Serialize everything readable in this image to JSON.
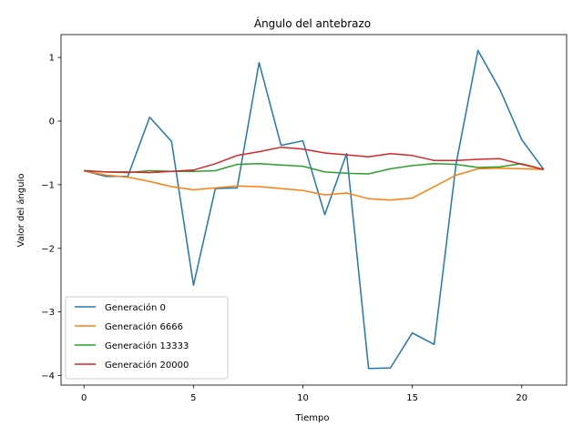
{
  "chart_data": {
    "type": "line",
    "title": "Ángulo del antebrazo",
    "xlabel": "Tiempo",
    "ylabel": "Valor del ángulo",
    "xlim": [
      -1.05,
      22.05
    ],
    "ylim": [
      -4.15,
      1.36
    ],
    "xticks": [
      0,
      5,
      10,
      15,
      20
    ],
    "yticks": [
      -4,
      -3,
      -2,
      -1,
      0,
      1
    ],
    "grid": false,
    "legend_position": "lower left",
    "x": [
      0,
      1,
      2,
      3,
      4,
      5,
      6,
      7,
      8,
      9,
      10,
      11,
      12,
      13,
      14,
      15,
      16,
      17,
      18,
      19,
      20,
      21
    ],
    "series": [
      {
        "name": "Generación 0",
        "color": "#1f77b4",
        "values": [
          -0.78,
          -0.87,
          -0.87,
          0.06,
          -0.32,
          -2.58,
          -1.06,
          -1.05,
          0.92,
          -0.38,
          -0.31,
          -1.47,
          -0.51,
          -3.89,
          -3.88,
          -3.33,
          -3.51,
          -0.67,
          1.11,
          0.5,
          -0.29,
          -0.76
        ]
      },
      {
        "name": "Generación 6666",
        "color": "#ff7f0e",
        "values": [
          -0.78,
          -0.85,
          -0.88,
          -0.95,
          -1.03,
          -1.08,
          -1.05,
          -1.02,
          -1.03,
          -1.06,
          -1.09,
          -1.16,
          -1.13,
          -1.22,
          -1.24,
          -1.21,
          -1.03,
          -0.85,
          -0.75,
          -0.74,
          -0.75,
          -0.76
        ]
      },
      {
        "name": "Generación 13333",
        "color": "#2ca02c",
        "values": [
          -0.78,
          -0.8,
          -0.81,
          -0.78,
          -0.79,
          -0.79,
          -0.78,
          -0.68,
          -0.67,
          -0.69,
          -0.71,
          -0.8,
          -0.82,
          -0.83,
          -0.75,
          -0.7,
          -0.67,
          -0.68,
          -0.73,
          -0.72,
          -0.67,
          -0.76
        ]
      },
      {
        "name": "Generación 20000",
        "color": "#d62728",
        "values": [
          -0.78,
          -0.8,
          -0.8,
          -0.81,
          -0.79,
          -0.77,
          -0.67,
          -0.54,
          -0.48,
          -0.41,
          -0.44,
          -0.5,
          -0.53,
          -0.56,
          -0.51,
          -0.54,
          -0.62,
          -0.62,
          -0.6,
          -0.59,
          -0.68,
          -0.76
        ]
      }
    ]
  }
}
